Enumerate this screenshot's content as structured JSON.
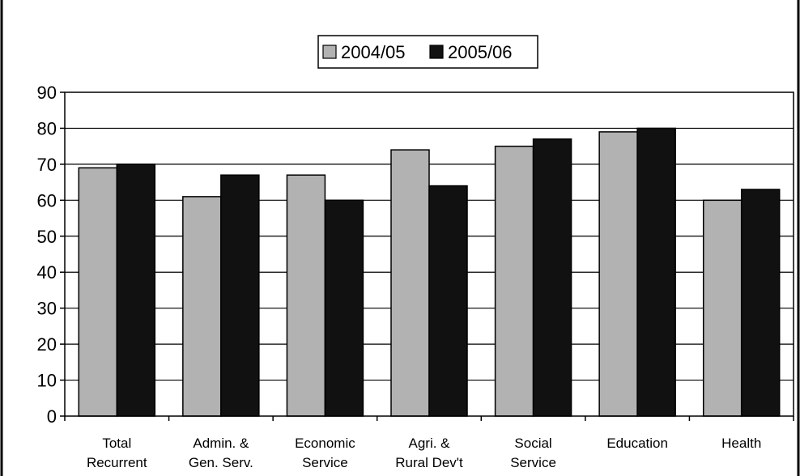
{
  "chart_data": {
    "type": "bar",
    "title": "",
    "xlabel": "",
    "ylabel": "",
    "ylim": [
      0,
      90
    ],
    "yticks": [
      0,
      10,
      20,
      30,
      40,
      50,
      60,
      70,
      80,
      90
    ],
    "grid": true,
    "legend_position": "top-center",
    "categories": [
      [
        "Total",
        "Recurrent"
      ],
      [
        "Admin. &",
        "Gen. Serv."
      ],
      [
        "Economic",
        "Service"
      ],
      [
        "Agri. &",
        "Rural Dev't"
      ],
      [
        "Social",
        "Service"
      ],
      [
        "Education"
      ],
      [
        "Health"
      ]
    ],
    "series": [
      {
        "name": "2004/05",
        "color": "#b2b2b2",
        "values": [
          69,
          61,
          67,
          74,
          75,
          79,
          60
        ]
      },
      {
        "name": "2005/06",
        "color": "#111111",
        "values": [
          70,
          67,
          60,
          64,
          77,
          80,
          63
        ]
      }
    ]
  }
}
